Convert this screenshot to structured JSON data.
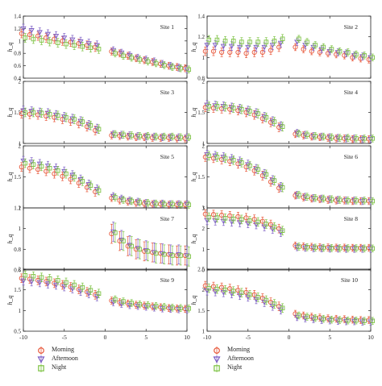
{
  "chart_data": {
    "type": "scatter",
    "layout": "5x2 grid of error-bar panels sharing x axis",
    "ylabel": "h_q",
    "x": [
      -10,
      -9,
      -8,
      -7,
      -6,
      -5,
      -4,
      -3,
      -2,
      -1,
      1,
      2,
      3,
      4,
      5,
      6,
      7,
      8,
      9,
      10
    ],
    "xlim": [
      -10,
      10
    ],
    "xticks": [
      "-10",
      "-5",
      "0",
      "5",
      "10"
    ],
    "series_styles": [
      {
        "name": "Morning",
        "marker": "circle",
        "color": "#e8573a"
      },
      {
        "name": "Afternoon",
        "marker": "triangle-down",
        "color": "#7b5cc4"
      },
      {
        "name": "Night",
        "marker": "square",
        "color": "#7cc242"
      }
    ],
    "panels": [
      {
        "title": "Site 1",
        "ylim": [
          0.4,
          1.4
        ],
        "yticks": [
          "0.4",
          "0.6",
          "0.8",
          "1",
          "1.2",
          "1.4"
        ],
        "series": [
          {
            "name": "Morning",
            "values": [
              1.12,
              1.1,
              1.08,
              1.05,
              1.03,
              1.0,
              0.98,
              0.96,
              0.93,
              0.9,
              0.83,
              0.8,
              0.76,
              0.72,
              0.69,
              0.66,
              0.63,
              0.6,
              0.58,
              0.56
            ]
          },
          {
            "name": "Afternoon",
            "values": [
              1.2,
              1.17,
              1.14,
              1.11,
              1.08,
              1.05,
              1.02,
              0.99,
              0.96,
              0.93,
              0.85,
              0.81,
              0.77,
              0.73,
              0.7,
              0.67,
              0.63,
              0.6,
              0.57,
              0.54
            ]
          },
          {
            "name": "Night",
            "values": [
              1.05,
              1.03,
              1.01,
              0.99,
              0.97,
              0.95,
              0.93,
              0.91,
              0.89,
              0.87,
              0.8,
              0.76,
              0.73,
              0.7,
              0.67,
              0.64,
              0.61,
              0.58,
              0.56,
              0.54
            ]
          }
        ]
      },
      {
        "title": "Site 2",
        "ylim": [
          0.8,
          1.4
        ],
        "yticks": [
          "0.8",
          "1",
          "1.2",
          "1.4"
        ],
        "series": [
          {
            "name": "Morning",
            "values": [
              1.06,
              1.06,
              1.05,
              1.05,
              1.05,
              1.04,
              1.05,
              1.05,
              1.07,
              1.1,
              1.1,
              1.08,
              1.06,
              1.05,
              1.04,
              1.03,
              1.02,
              1.0,
              0.99,
              0.98
            ]
          },
          {
            "name": "Afternoon",
            "values": [
              1.12,
              1.12,
              1.11,
              1.11,
              1.1,
              1.1,
              1.1,
              1.1,
              1.12,
              1.14,
              1.15,
              1.12,
              1.1,
              1.08,
              1.06,
              1.05,
              1.04,
              1.02,
              1.01,
              1.0
            ]
          },
          {
            "name": "Night",
            "values": [
              1.17,
              1.17,
              1.16,
              1.16,
              1.15,
              1.15,
              1.15,
              1.15,
              1.16,
              1.18,
              1.18,
              1.15,
              1.12,
              1.1,
              1.08,
              1.06,
              1.05,
              1.03,
              1.02,
              1.0
            ]
          }
        ]
      },
      {
        "title": "Site 3",
        "ylim": [
          1,
          2
        ],
        "yticks": [
          "1",
          "1.5",
          "2"
        ],
        "series": [
          {
            "name": "Morning",
            "values": [
              1.48,
              1.47,
              1.46,
              1.44,
              1.42,
              1.39,
              1.36,
              1.32,
              1.27,
              1.21,
              1.13,
              1.12,
              1.11,
              1.1,
              1.1,
              1.09,
              1.09,
              1.09,
              1.08,
              1.08
            ]
          },
          {
            "name": "Afternoon",
            "values": [
              1.53,
              1.52,
              1.5,
              1.49,
              1.46,
              1.43,
              1.4,
              1.36,
              1.3,
              1.24,
              1.15,
              1.14,
              1.13,
              1.12,
              1.11,
              1.11,
              1.1,
              1.1,
              1.1,
              1.1
            ]
          },
          {
            "name": "Night",
            "values": [
              1.5,
              1.5,
              1.49,
              1.47,
              1.45,
              1.42,
              1.39,
              1.35,
              1.29,
              1.23,
              1.15,
              1.14,
              1.13,
              1.12,
              1.12,
              1.11,
              1.11,
              1.11,
              1.1,
              1.1
            ]
          }
        ]
      },
      {
        "title": "Site 4",
        "ylim": [
          1,
          2
        ],
        "yticks": [
          "1",
          "1.5",
          "2"
        ],
        "series": [
          {
            "name": "Morning",
            "values": [
              1.58,
              1.57,
              1.56,
              1.55,
              1.53,
              1.5,
              1.46,
              1.4,
              1.34,
              1.26,
              1.15,
              1.13,
              1.11,
              1.1,
              1.09,
              1.08,
              1.08,
              1.07,
              1.07,
              1.07
            ]
          },
          {
            "name": "Afternoon",
            "values": [
              1.62,
              1.61,
              1.6,
              1.58,
              1.56,
              1.53,
              1.49,
              1.43,
              1.36,
              1.28,
              1.17,
              1.14,
              1.12,
              1.11,
              1.1,
              1.09,
              1.08,
              1.08,
              1.07,
              1.07
            ]
          },
          {
            "name": "Night",
            "values": [
              1.6,
              1.6,
              1.59,
              1.57,
              1.55,
              1.52,
              1.48,
              1.42,
              1.35,
              1.27,
              1.16,
              1.14,
              1.12,
              1.11,
              1.1,
              1.09,
              1.09,
              1.08,
              1.08,
              1.08
            ]
          }
        ]
      },
      {
        "title": "Site 5",
        "ylim": [
          1,
          2
        ],
        "yticks": [
          "1",
          "1.5",
          "2"
        ],
        "series": [
          {
            "name": "Morning",
            "values": [
              1.66,
              1.64,
              1.62,
              1.59,
              1.55,
              1.51,
              1.46,
              1.4,
              1.33,
              1.26,
              1.16,
              1.12,
              1.1,
              1.08,
              1.07,
              1.06,
              1.06,
              1.05,
              1.05,
              1.05
            ]
          },
          {
            "name": "Afternoon",
            "values": [
              1.76,
              1.74,
              1.71,
              1.68,
              1.64,
              1.59,
              1.53,
              1.46,
              1.38,
              1.3,
              1.19,
              1.15,
              1.12,
              1.1,
              1.08,
              1.07,
              1.07,
              1.06,
              1.06,
              1.06
            ]
          },
          {
            "name": "Night",
            "values": [
              1.72,
              1.7,
              1.67,
              1.64,
              1.6,
              1.55,
              1.5,
              1.43,
              1.36,
              1.28,
              1.17,
              1.13,
              1.11,
              1.09,
              1.08,
              1.07,
              1.06,
              1.06,
              1.05,
              1.05
            ]
          }
        ]
      },
      {
        "title": "Site 6",
        "ylim": [
          1,
          2
        ],
        "yticks": [
          "1",
          "1.5",
          "2"
        ],
        "series": [
          {
            "name": "Morning",
            "values": [
              1.82,
              1.8,
              1.78,
              1.75,
              1.71,
              1.66,
              1.6,
              1.52,
              1.42,
              1.32,
              1.2,
              1.17,
              1.15,
              1.14,
              1.13,
              1.12,
              1.12,
              1.11,
              1.11,
              1.11
            ]
          },
          {
            "name": "Afternoon",
            "values": [
              1.86,
              1.84,
              1.82,
              1.79,
              1.75,
              1.7,
              1.63,
              1.55,
              1.45,
              1.34,
              1.21,
              1.18,
              1.16,
              1.15,
              1.14,
              1.13,
              1.12,
              1.12,
              1.11,
              1.11
            ]
          },
          {
            "name": "Night",
            "values": [
              1.84,
              1.82,
              1.8,
              1.77,
              1.73,
              1.68,
              1.62,
              1.54,
              1.44,
              1.33,
              1.21,
              1.18,
              1.16,
              1.15,
              1.14,
              1.13,
              1.12,
              1.12,
              1.12,
              1.11
            ]
          }
        ]
      },
      {
        "title": "Site 7",
        "ylim": [
          0.6,
          1.2
        ],
        "yticks": [
          "0.6",
          "0.8",
          "1",
          "1.2"
        ],
        "series": [
          {
            "name": "Morning",
            "values": [
              null,
              null,
              null,
              null,
              null,
              null,
              null,
              null,
              null,
              null,
              0.95,
              0.88,
              0.83,
              0.8,
              0.78,
              0.77,
              0.76,
              0.75,
              0.74,
              0.74
            ]
          },
          {
            "name": "Afternoon",
            "values": [
              null,
              null,
              null,
              null,
              null,
              null,
              null,
              null,
              null,
              null,
              0.97,
              0.89,
              0.84,
              0.81,
              0.79,
              0.77,
              0.76,
              0.75,
              0.75,
              0.74
            ]
          },
          {
            "name": "Night",
            "values": [
              null,
              null,
              null,
              null,
              null,
              null,
              null,
              null,
              null,
              null,
              0.96,
              0.88,
              0.83,
              0.8,
              0.78,
              0.76,
              0.75,
              0.74,
              0.74,
              0.73
            ]
          }
        ]
      },
      {
        "title": "Site 8",
        "ylim": [
          0,
          3
        ],
        "yticks": [
          "0",
          "1",
          "2",
          "3"
        ],
        "series": [
          {
            "name": "Morning",
            "values": [
              2.7,
              2.68,
              2.65,
              2.62,
              2.58,
              2.52,
              2.45,
              2.35,
              2.2,
              2.0,
              1.18,
              1.14,
              1.12,
              1.1,
              1.09,
              1.08,
              1.08,
              1.07,
              1.07,
              1.07
            ]
          },
          {
            "name": "Afternoon",
            "values": [
              2.4,
              2.38,
              2.36,
              2.33,
              2.3,
              2.25,
              2.2,
              2.1,
              1.98,
              1.82,
              1.1,
              1.07,
              1.05,
              1.04,
              1.03,
              1.03,
              1.02,
              1.02,
              1.02,
              1.02
            ]
          },
          {
            "name": "Night",
            "values": [
              2.55,
              2.53,
              2.5,
              2.47,
              2.44,
              2.38,
              2.32,
              2.22,
              2.08,
              1.9,
              1.13,
              1.1,
              1.08,
              1.07,
              1.06,
              1.05,
              1.05,
              1.05,
              1.04,
              1.04
            ]
          }
        ]
      },
      {
        "title": "Site 9",
        "ylim": [
          0.5,
          2
        ],
        "yticks": [
          "0.5",
          "1",
          "1.5",
          "2"
        ],
        "series": [
          {
            "name": "Morning",
            "values": [
              1.78,
              1.76,
              1.73,
              1.7,
              1.66,
              1.62,
              1.57,
              1.51,
              1.45,
              1.38,
              1.24,
              1.2,
              1.17,
              1.14,
              1.12,
              1.1,
              1.08,
              1.06,
              1.05,
              1.04
            ]
          },
          {
            "name": "Afternoon",
            "values": [
              1.72,
              1.7,
              1.68,
              1.65,
              1.62,
              1.58,
              1.53,
              1.47,
              1.41,
              1.34,
              1.2,
              1.16,
              1.13,
              1.11,
              1.09,
              1.07,
              1.05,
              1.04,
              1.03,
              1.02
            ]
          },
          {
            "name": "Night",
            "values": [
              1.85,
              1.83,
              1.8,
              1.77,
              1.73,
              1.68,
              1.62,
              1.56,
              1.49,
              1.41,
              1.27,
              1.22,
              1.18,
              1.15,
              1.13,
              1.11,
              1.09,
              1.07,
              1.06,
              1.05
            ]
          }
        ]
      },
      {
        "title": "Site 10",
        "ylim": [
          1,
          2.5
        ],
        "yticks": [
          "1",
          "1.5",
          "2",
          "2.5"
        ],
        "series": [
          {
            "name": "Morning",
            "values": [
              2.1,
              2.08,
              2.06,
              2.03,
              1.99,
              1.94,
              1.88,
              1.8,
              1.7,
              1.6,
              1.42,
              1.38,
              1.35,
              1.33,
              1.31,
              1.3,
              1.29,
              1.28,
              1.27,
              1.27
            ]
          },
          {
            "name": "Afternoon",
            "values": [
              1.98,
              1.96,
              1.94,
              1.91,
              1.87,
              1.83,
              1.77,
              1.7,
              1.61,
              1.52,
              1.34,
              1.31,
              1.29,
              1.27,
              1.26,
              1.25,
              1.24,
              1.24,
              1.23,
              1.23
            ]
          },
          {
            "name": "Night",
            "values": [
              2.04,
              2.02,
              2.0,
              1.97,
              1.93,
              1.88,
              1.82,
              1.75,
              1.66,
              1.56,
              1.38,
              1.35,
              1.32,
              1.3,
              1.28,
              1.27,
              1.26,
              1.26,
              1.25,
              1.25
            ]
          }
        ]
      }
    ],
    "legend": [
      "Morning",
      "Afternoon",
      "Night"
    ],
    "grid": false
  }
}
